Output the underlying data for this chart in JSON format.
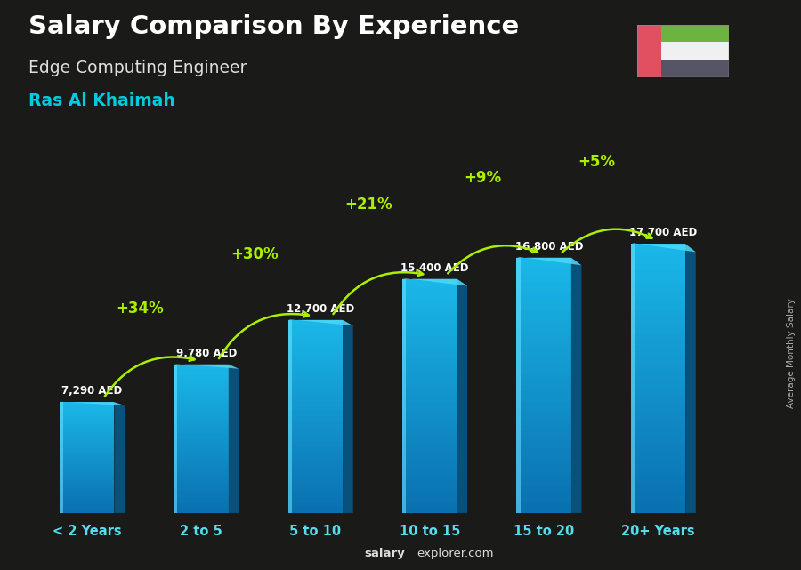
{
  "title": "Salary Comparison By Experience",
  "subtitle": "Edge Computing Engineer",
  "location": "Ras Al Khaimah",
  "categories": [
    "< 2 Years",
    "2 to 5",
    "5 to 10",
    "10 to 15",
    "15 to 20",
    "20+ Years"
  ],
  "values": [
    7290,
    9780,
    12700,
    15400,
    16800,
    17700
  ],
  "labels": [
    "7,290 AED",
    "9,780 AED",
    "12,700 AED",
    "15,400 AED",
    "16,800 AED",
    "17,700 AED"
  ],
  "pct_labels": [
    "+34%",
    "+30%",
    "+21%",
    "+9%",
    "+5%"
  ],
  "bar_color_main": "#1ab8e8",
  "bar_color_dark": "#0d7aaa",
  "bar_color_right": "#0a5a88",
  "bar_color_top": "#5dd4f0",
  "background_dark": "#1a1a18",
  "background_mid": "#2a2f35",
  "title_color": "#ffffff",
  "subtitle_color": "#e0e0e0",
  "location_color": "#00ccdd",
  "label_color": "#ffffff",
  "pct_color": "#aaee00",
  "xlabel_color": "#55ddee",
  "watermark_bold": "salary",
  "watermark_rest": "explorer.com",
  "side_label": "Average Monthly Salary",
  "ylim": [
    0,
    21000
  ],
  "bar_width": 0.48,
  "bar_depth": 0.09,
  "flag_red": "#e05060",
  "flag_green": "#6db33f",
  "flag_white": "#f0f0f0",
  "flag_black": "#555566"
}
